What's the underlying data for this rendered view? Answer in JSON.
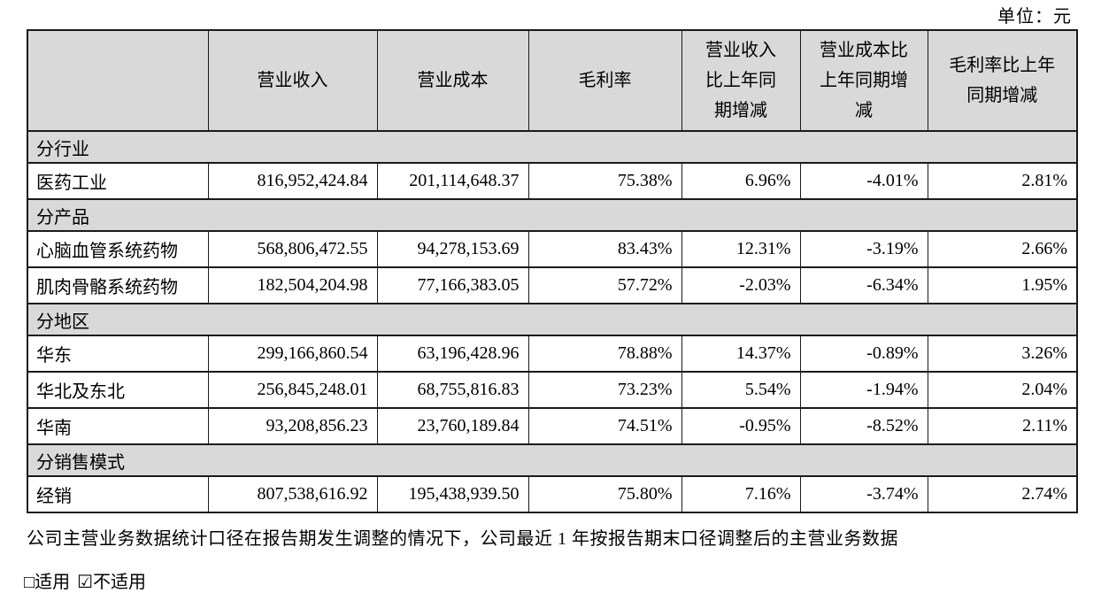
{
  "unit_label": "单位：元",
  "table": {
    "column_headers": [
      "",
      "营业收入",
      "营业成本",
      "毛利率",
      "营业收入\n比上年同\n期增减",
      "营业成本比\n上年同期增\n减",
      "毛利率比上年\n同期增减"
    ],
    "sections": [
      {
        "title": "分行业",
        "rows": [
          {
            "label": "医药工业",
            "values": [
              "816,952,424.84",
              "201,114,648.37",
              "75.38%",
              "6.96%",
              "-4.01%",
              "2.81%"
            ]
          }
        ]
      },
      {
        "title": "分产品",
        "rows": [
          {
            "label": "心脑血管系统药物",
            "values": [
              "568,806,472.55",
              "94,278,153.69",
              "83.43%",
              "12.31%",
              "-3.19%",
              "2.66%"
            ]
          },
          {
            "label": "肌肉骨骼系统药物",
            "values": [
              "182,504,204.98",
              "77,166,383.05",
              "57.72%",
              "-2.03%",
              "-6.34%",
              "1.95%"
            ]
          }
        ]
      },
      {
        "title": "分地区",
        "rows": [
          {
            "label": "华东",
            "values": [
              "299,166,860.54",
              "63,196,428.96",
              "78.88%",
              "14.37%",
              "-0.89%",
              "3.26%"
            ]
          },
          {
            "label": "华北及东北",
            "values": [
              "256,845,248.01",
              "68,755,816.83",
              "73.23%",
              "5.54%",
              "-1.94%",
              "2.04%"
            ]
          },
          {
            "label": "华南",
            "values": [
              "93,208,856.23",
              "23,760,189.84",
              "74.51%",
              "-0.95%",
              "-8.52%",
              "2.11%"
            ]
          }
        ]
      },
      {
        "title": "分销售模式",
        "rows": [
          {
            "label": "经销",
            "values": [
              "807,538,616.92",
              "195,438,939.50",
              "75.80%",
              "7.16%",
              "-3.74%",
              "2.74%"
            ]
          }
        ]
      }
    ]
  },
  "footnote": "公司主营业务数据统计口径在报告期发生调整的情况下，公司最近 1 年按报告期末口径调整后的主营业务数据",
  "applicability": {
    "applicable": "□适用",
    "not_applicable": "☑不适用"
  },
  "colors": {
    "header_fill": "#d9d9d9",
    "border": "#1a1a1a",
    "text": "#000000",
    "background": "#ffffff"
  }
}
